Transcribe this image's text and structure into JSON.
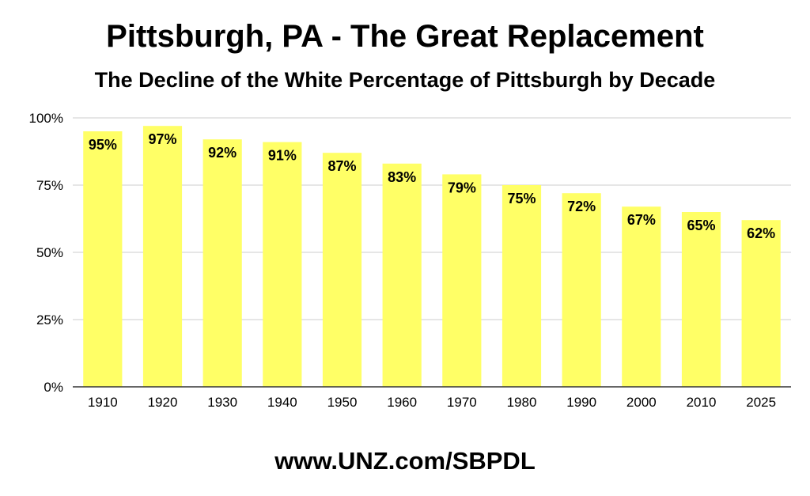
{
  "title": "Pittsburgh, PA - The Great Replacement",
  "subtitle": "The Decline of the White Percentage of Pittsburgh by Decade",
  "footer": "www.UNZ.com/SBPDL",
  "colors": {
    "bar": "#ffff66",
    "grid": "#cccccc",
    "axis": "#333333"
  },
  "chart_data": {
    "type": "bar",
    "title": "Pittsburgh, PA - The Great Replacement",
    "subtitle": "The Decline of the White Percentage of Pittsburgh by Decade",
    "xlabel": "",
    "ylabel": "",
    "ylim": [
      0,
      100
    ],
    "yticks": [
      0,
      25,
      50,
      75,
      100
    ],
    "ytick_labels": [
      "0%",
      "25%",
      "50%",
      "75%",
      "100%"
    ],
    "grid": true,
    "legend": "none",
    "categories": [
      "1910",
      "1920",
      "1930",
      "1940",
      "1950",
      "1960",
      "1970",
      "1980",
      "1990",
      "2000",
      "2010",
      "2025"
    ],
    "values": [
      95,
      97,
      92,
      91,
      87,
      83,
      79,
      75,
      72,
      67,
      65,
      62
    ],
    "data_labels": [
      "95%",
      "97%",
      "92%",
      "91%",
      "87%",
      "83%",
      "79%",
      "75%",
      "72%",
      "67%",
      "65%",
      "62%"
    ]
  }
}
